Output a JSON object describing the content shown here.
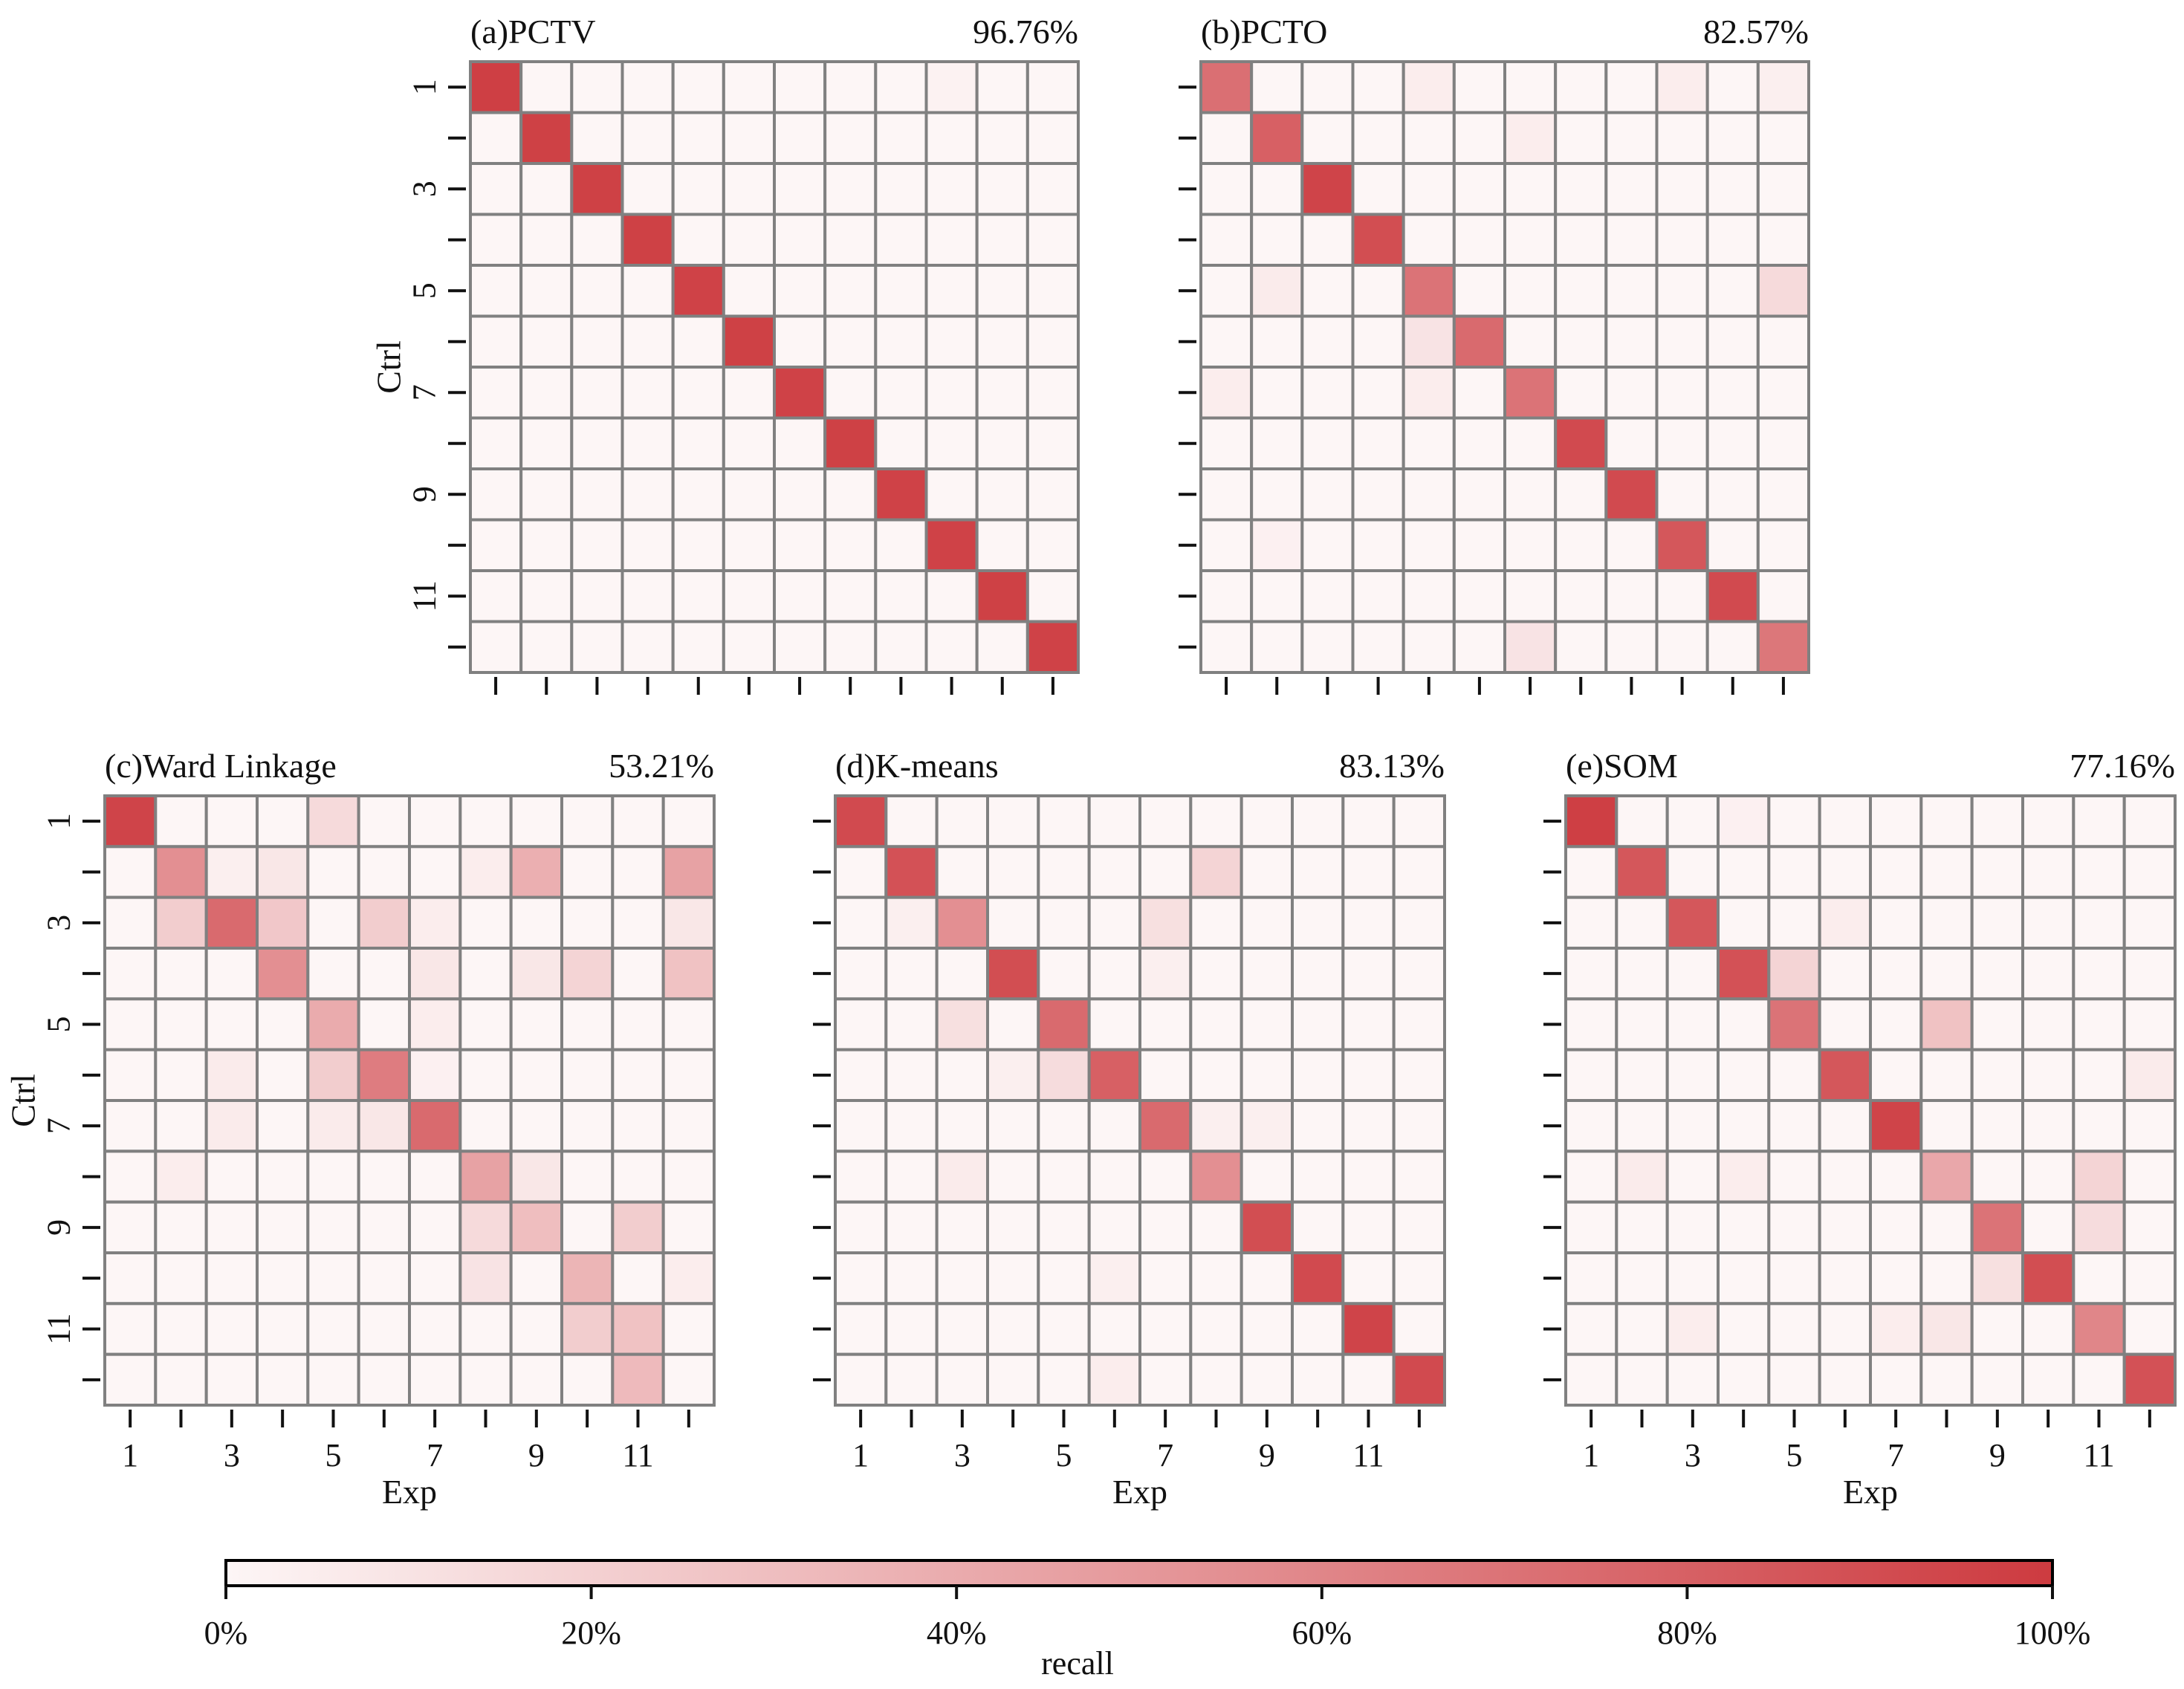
{
  "figure": {
    "colorbar": {
      "label": "recall",
      "ticks": [
        "0%",
        "20%",
        "40%",
        "60%",
        "80%",
        "100%"
      ],
      "color_low": "#fdf6f6",
      "color_high": "#cd3b40"
    },
    "grid_color": "#808080"
  },
  "chart_data": [
    {
      "type": "heatmap",
      "title": "(a)PCTV",
      "accuracy": "96.76%",
      "xlabel": "",
      "ylabel": "Ctrl",
      "x_tick_labels": [],
      "y_tick_labels": [
        "1",
        "",
        "3",
        "",
        "5",
        "",
        "7",
        "",
        "9",
        "",
        "11",
        ""
      ],
      "values": [
        [
          0.98,
          0,
          0,
          0,
          0,
          0,
          0,
          0,
          0,
          0.02,
          0,
          0
        ],
        [
          0,
          0.97,
          0,
          0,
          0,
          0,
          0,
          0,
          0,
          0,
          0,
          0
        ],
        [
          0,
          0,
          0.97,
          0,
          0,
          0,
          0,
          0,
          0,
          0,
          0,
          0
        ],
        [
          0,
          0,
          0,
          0.97,
          0,
          0,
          0,
          0,
          0,
          0,
          0,
          0
        ],
        [
          0,
          0,
          0,
          0,
          0.96,
          0,
          0,
          0,
          0,
          0,
          0,
          0
        ],
        [
          0,
          0,
          0,
          0,
          0,
          0.97,
          0,
          0,
          0,
          0,
          0,
          0
        ],
        [
          0,
          0,
          0,
          0,
          0,
          0,
          0.96,
          0,
          0,
          0,
          0,
          0
        ],
        [
          0,
          0,
          0,
          0,
          0,
          0,
          0,
          0.97,
          0,
          0,
          0,
          0
        ],
        [
          0,
          0,
          0,
          0,
          0,
          0,
          0,
          0,
          0.96,
          0,
          0,
          0
        ],
        [
          0,
          0,
          0,
          0,
          0,
          0,
          0,
          0,
          0,
          0.96,
          0,
          0
        ],
        [
          0,
          0,
          0,
          0,
          0,
          0,
          0,
          0,
          0,
          0,
          0.97,
          0
        ],
        [
          0,
          0,
          0,
          0,
          0,
          0,
          0,
          0,
          0,
          0,
          0,
          0.96
        ]
      ]
    },
    {
      "type": "heatmap",
      "title": "(b)PCTO",
      "accuracy": "82.57%",
      "xlabel": "",
      "ylabel": "",
      "x_tick_labels": [],
      "y_tick_labels": [],
      "values": [
        [
          0.72,
          0,
          0,
          0,
          0.05,
          0,
          0,
          0,
          0,
          0.05,
          0,
          0.04
        ],
        [
          0,
          0.8,
          0,
          0,
          0,
          0,
          0.05,
          0,
          0,
          0,
          0,
          0
        ],
        [
          0,
          0,
          0.95,
          0,
          0,
          0,
          0,
          0,
          0,
          0,
          0,
          0
        ],
        [
          0,
          0,
          0,
          0.9,
          0,
          0,
          0,
          0,
          0,
          0,
          0,
          0
        ],
        [
          0,
          0.06,
          0,
          0,
          0.7,
          0,
          0,
          0,
          0,
          0,
          0,
          0.15
        ],
        [
          0,
          0,
          0,
          0,
          0.1,
          0.75,
          0,
          0,
          0,
          0,
          0,
          0
        ],
        [
          0.05,
          0,
          0,
          0,
          0.05,
          0,
          0.7,
          0,
          0,
          0,
          0,
          0
        ],
        [
          0,
          0,
          0,
          0,
          0,
          0,
          0,
          0.92,
          0,
          0,
          0,
          0
        ],
        [
          0,
          0,
          0,
          0,
          0,
          0,
          0,
          0,
          0.92,
          0,
          0,
          0
        ],
        [
          0,
          0.03,
          0,
          0,
          0,
          0,
          0,
          0,
          0,
          0.85,
          0,
          0
        ],
        [
          0,
          0,
          0,
          0,
          0,
          0,
          0,
          0,
          0,
          0,
          0.92,
          0
        ],
        [
          0,
          0,
          0,
          0,
          0,
          0,
          0.1,
          0,
          0,
          0,
          0,
          0.68
        ]
      ]
    },
    {
      "type": "heatmap",
      "title": "(c)Ward Linkage",
      "accuracy": "53.21%",
      "xlabel": "Exp",
      "ylabel": "Ctrl",
      "x_tick_labels": [
        "1",
        "",
        "3",
        "",
        "5",
        "",
        "7",
        "",
        "9",
        "",
        "11",
        ""
      ],
      "y_tick_labels": [
        "1",
        "",
        "3",
        "",
        "5",
        "",
        "7",
        "",
        "9",
        "",
        "11",
        ""
      ],
      "values": [
        [
          0.95,
          0,
          0,
          0,
          0.15,
          0,
          0,
          0,
          0,
          0,
          0,
          0
        ],
        [
          0,
          0.55,
          0.04,
          0.08,
          0,
          0,
          0,
          0.05,
          0.38,
          0,
          0,
          0.45
        ],
        [
          0,
          0.22,
          0.75,
          0.25,
          0,
          0.22,
          0.05,
          0,
          0,
          0,
          0,
          0.08
        ],
        [
          0,
          0,
          0,
          0.55,
          0,
          0,
          0.08,
          0,
          0.08,
          0.18,
          0,
          0.28
        ],
        [
          0,
          0,
          0,
          0,
          0.4,
          0,
          0.05,
          0,
          0,
          0,
          0,
          0
        ],
        [
          0,
          0,
          0.06,
          0,
          0.22,
          0.65,
          0.03,
          0,
          0,
          0,
          0,
          0
        ],
        [
          0,
          0,
          0.06,
          0,
          0.06,
          0.08,
          0.75,
          0,
          0,
          0,
          0,
          0
        ],
        [
          0,
          0.05,
          0,
          0,
          0,
          0,
          0,
          0.45,
          0.08,
          0,
          0,
          0
        ],
        [
          0,
          0,
          0,
          0,
          0,
          0,
          0,
          0.15,
          0.3,
          0,
          0.22,
          0
        ],
        [
          0,
          0,
          0,
          0,
          0,
          0,
          0,
          0.1,
          0,
          0.35,
          0,
          0.05
        ],
        [
          0,
          0,
          0,
          0,
          0,
          0,
          0,
          0,
          0,
          0.22,
          0.28,
          0
        ],
        [
          0,
          0,
          0,
          0,
          0,
          0,
          0,
          0,
          0,
          0,
          0.32,
          0
        ]
      ]
    },
    {
      "type": "heatmap",
      "title": "(d)K-means",
      "accuracy": "83.13%",
      "xlabel": "Exp",
      "ylabel": "",
      "x_tick_labels": [
        "1",
        "",
        "3",
        "",
        "5",
        "",
        "7",
        "",
        "9",
        "",
        "11",
        ""
      ],
      "y_tick_labels": [],
      "values": [
        [
          0.92,
          0,
          0,
          0,
          0,
          0,
          0,
          0,
          0,
          0,
          0,
          0
        ],
        [
          0,
          0.88,
          0,
          0,
          0,
          0,
          0,
          0.18,
          0,
          0,
          0,
          0
        ],
        [
          0,
          0.04,
          0.55,
          0,
          0,
          0,
          0.12,
          0,
          0,
          0,
          0,
          0
        ],
        [
          0,
          0,
          0,
          0.9,
          0,
          0,
          0.04,
          0,
          0,
          0,
          0,
          0
        ],
        [
          0,
          0,
          0.12,
          0,
          0.75,
          0,
          0,
          0,
          0,
          0,
          0,
          0
        ],
        [
          0,
          0,
          0,
          0.04,
          0.14,
          0.8,
          0,
          0,
          0,
          0,
          0,
          0
        ],
        [
          0,
          0,
          0,
          0,
          0,
          0,
          0.75,
          0.04,
          0.04,
          0,
          0,
          0
        ],
        [
          0,
          0,
          0.06,
          0,
          0,
          0,
          0,
          0.55,
          0,
          0,
          0,
          0
        ],
        [
          0,
          0,
          0,
          0,
          0,
          0,
          0,
          0,
          0.9,
          0,
          0,
          0
        ],
        [
          0,
          0,
          0,
          0,
          0,
          0.04,
          0,
          0,
          0,
          0.92,
          0,
          0
        ],
        [
          0,
          0,
          0,
          0,
          0,
          0,
          0,
          0,
          0,
          0,
          0.95,
          0
        ],
        [
          0,
          0,
          0,
          0,
          0,
          0.05,
          0,
          0,
          0,
          0,
          0,
          0.92
        ]
      ]
    },
    {
      "type": "heatmap",
      "title": "(e)SOM",
      "accuracy": "77.16%",
      "xlabel": "Exp",
      "ylabel": "",
      "x_tick_labels": [
        "1",
        "",
        "3",
        "",
        "5",
        "",
        "7",
        "",
        "9",
        "",
        "11",
        ""
      ],
      "y_tick_labels": [],
      "values": [
        [
          0.98,
          0,
          0,
          0.03,
          0,
          0,
          0,
          0,
          0,
          0,
          0,
          0
        ],
        [
          0,
          0.85,
          0,
          0,
          0,
          0,
          0,
          0,
          0,
          0,
          0,
          0
        ],
        [
          0,
          0,
          0.85,
          0,
          0,
          0.05,
          0,
          0,
          0,
          0,
          0,
          0
        ],
        [
          0,
          0,
          0,
          0.88,
          0.18,
          0,
          0,
          0,
          0,
          0,
          0,
          0
        ],
        [
          0,
          0,
          0,
          0,
          0.7,
          0,
          0,
          0.28,
          0,
          0,
          0,
          0
        ],
        [
          0,
          0,
          0,
          0,
          0,
          0.85,
          0,
          0,
          0,
          0,
          0,
          0.06
        ],
        [
          0,
          0,
          0,
          0,
          0,
          0,
          0.95,
          0,
          0,
          0,
          0,
          0
        ],
        [
          0,
          0.06,
          0,
          0.05,
          0,
          0,
          0,
          0.42,
          0,
          0,
          0.18,
          0
        ],
        [
          0,
          0,
          0,
          0,
          0,
          0,
          0,
          0,
          0.7,
          0,
          0.14,
          0
        ],
        [
          0,
          0,
          0,
          0,
          0,
          0,
          0,
          0,
          0.12,
          0.9,
          0,
          0
        ],
        [
          0,
          0,
          0.05,
          0,
          0,
          0,
          0.05,
          0.08,
          0,
          0,
          0.6,
          0
        ],
        [
          0,
          0,
          0,
          0,
          0,
          0,
          0,
          0,
          0,
          0,
          0,
          0.88
        ]
      ]
    }
  ]
}
